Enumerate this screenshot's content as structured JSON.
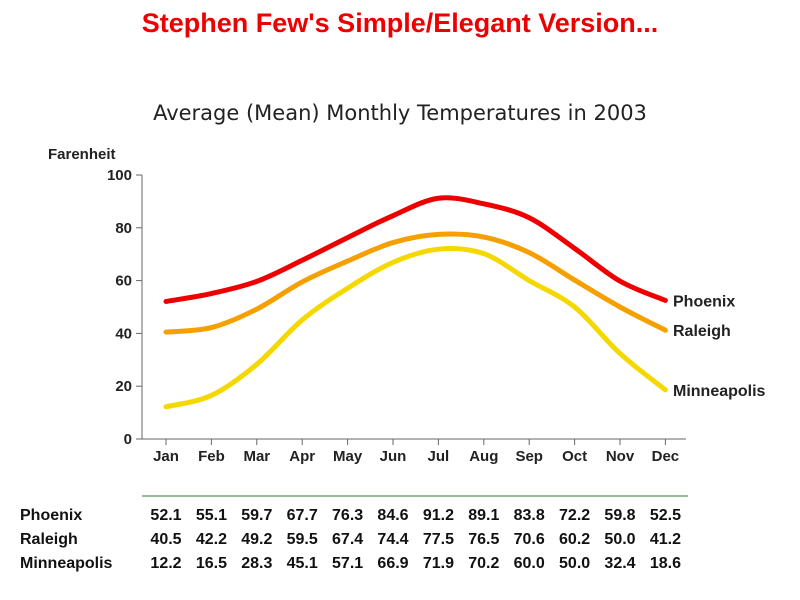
{
  "header": {
    "title": "Stephen Few's Simple/Elegant Version..."
  },
  "chart_data": {
    "type": "line",
    "title": "Average (Mean) Monthly Temperatures in 2003",
    "ylabel": "Farenheit",
    "xlabel": "",
    "ylim": [
      0,
      100
    ],
    "yticks": [
      0,
      20,
      40,
      60,
      80,
      100
    ],
    "categories": [
      "Jan",
      "Feb",
      "Mar",
      "Apr",
      "May",
      "Jun",
      "Jul",
      "Aug",
      "Sep",
      "Oct",
      "Nov",
      "Dec"
    ],
    "series": [
      {
        "name": "Phoenix",
        "color": "#ee0000",
        "values": [
          52.1,
          55.1,
          59.7,
          67.7,
          76.3,
          84.6,
          91.2,
          89.1,
          83.8,
          72.2,
          59.8,
          52.5
        ]
      },
      {
        "name": "Raleigh",
        "color": "#f5a000",
        "values": [
          40.5,
          42.2,
          49.2,
          59.5,
          67.4,
          74.4,
          77.5,
          76.5,
          70.6,
          60.2,
          50.0,
          41.2
        ]
      },
      {
        "name": "Minneapolis",
        "color": "#f5d800",
        "values": [
          12.2,
          16.5,
          28.3,
          45.1,
          57.1,
          66.9,
          71.9,
          70.2,
          60.0,
          50.0,
          32.4,
          18.6
        ]
      }
    ],
    "grid": false,
    "legend": "right, inline at line ends",
    "table": {
      "rows": [
        {
          "label": "Phoenix",
          "values": [
            "52.1",
            "55.1",
            "59.7",
            "67.7",
            "76.3",
            "84.6",
            "91.2",
            "89.1",
            "83.8",
            "72.2",
            "59.8",
            "52.5"
          ]
        },
        {
          "label": "Raleigh",
          "values": [
            "40.5",
            "42.2",
            "49.2",
            "59.5",
            "67.4",
            "74.4",
            "77.5",
            "76.5",
            "70.6",
            "60.2",
            "50.0",
            "41.2"
          ]
        },
        {
          "label": "Minneapolis",
          "values": [
            "12.2",
            "16.5",
            "28.3",
            "45.1",
            "57.1",
            "66.9",
            "71.9",
            "70.2",
            "60.0",
            "50.0",
            "32.4",
            "18.6"
          ]
        }
      ],
      "rule_color": "#2e7d32"
    }
  }
}
